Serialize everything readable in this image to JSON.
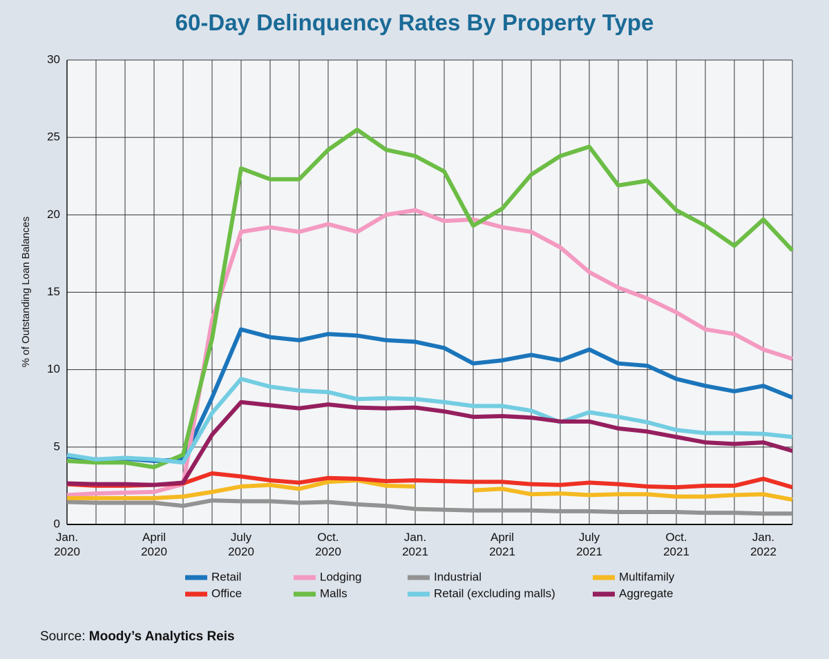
{
  "chart_data": {
    "type": "line",
    "title": "60-Day Delinquency Rates By Property Type",
    "y_label": "% of Outstanding Loan Balances",
    "source_label": "Source:",
    "source": "Moody’s Analytics Reis",
    "categories": [
      "Jan. 2020",
      null,
      null,
      "April 2020",
      null,
      null,
      "July 2020",
      null,
      null,
      "Oct. 2020",
      null,
      null,
      "Jan. 2021",
      null,
      null,
      "April 2021",
      null,
      null,
      "July 2021",
      null,
      null,
      "Oct. 2021",
      null,
      null,
      "Jan. 2022",
      null
    ],
    "ylim": [
      0,
      30
    ],
    "yticks": [
      0,
      5,
      10,
      15,
      20,
      25,
      30
    ],
    "grid": true,
    "series": [
      {
        "name": "Retail",
        "color": "#1b75bb",
        "values": [
          4.4,
          4.2,
          4.25,
          4.1,
          4.2,
          8.2,
          12.6,
          12.1,
          11.9,
          12.3,
          12.2,
          11.9,
          11.8,
          11.4,
          10.4,
          10.6,
          10.95,
          10.6,
          11.3,
          10.4,
          10.25,
          9.4,
          8.95,
          8.6,
          8.95,
          8.2
        ]
      },
      {
        "name": "Lodging",
        "color": "#f49ac1",
        "values": [
          1.9,
          2.0,
          2.05,
          2.1,
          2.6,
          13.2,
          18.9,
          19.2,
          18.9,
          19.4,
          18.9,
          20.0,
          20.3,
          19.6,
          19.7,
          19.2,
          18.9,
          17.9,
          16.3,
          15.3,
          14.6,
          13.7,
          12.6,
          12.3,
          11.3,
          10.7
        ]
      },
      {
        "name": "Industrial",
        "color": "#939393",
        "values": [
          1.45,
          1.4,
          1.4,
          1.4,
          1.2,
          1.55,
          1.5,
          1.5,
          1.4,
          1.45,
          1.3,
          1.2,
          1.0,
          0.95,
          0.9,
          0.9,
          0.9,
          0.85,
          0.85,
          0.8,
          0.8,
          0.8,
          0.75,
          0.75,
          0.7,
          0.7
        ]
      },
      {
        "name": "Multifamily",
        "color": "#f5b921",
        "values": [
          1.7,
          1.7,
          1.7,
          1.7,
          1.8,
          2.1,
          2.45,
          2.55,
          2.3,
          2.75,
          2.85,
          2.5,
          2.45,
          null,
          2.2,
          2.3,
          1.95,
          2.0,
          1.9,
          1.95,
          1.95,
          1.8,
          1.8,
          1.9,
          1.95,
          1.6
        ]
      },
      {
        "name": "Office",
        "color": "#ee3124",
        "values": [
          2.6,
          2.5,
          2.5,
          2.55,
          2.65,
          3.3,
          3.1,
          2.85,
          2.7,
          3.0,
          2.95,
          2.8,
          2.85,
          2.8,
          2.75,
          2.75,
          2.6,
          2.55,
          2.7,
          2.6,
          2.45,
          2.4,
          2.5,
          2.5,
          2.95,
          2.4
        ]
      },
      {
        "name": "Malls",
        "color": "#6cbd45",
        "values": [
          4.1,
          4.0,
          4.0,
          3.7,
          4.5,
          12.0,
          23.0,
          22.3,
          22.3,
          24.2,
          25.5,
          24.2,
          23.8,
          22.8,
          19.3,
          20.4,
          22.6,
          23.8,
          24.4,
          21.9,
          22.2,
          20.3,
          19.3,
          18.0,
          19.7,
          17.7
        ]
      },
      {
        "name": "Retail (excluding malls)",
        "color": "#73cde2",
        "values": [
          4.5,
          4.2,
          4.3,
          4.2,
          4.0,
          7.2,
          9.4,
          8.9,
          8.65,
          8.55,
          8.1,
          8.15,
          8.1,
          7.9,
          7.65,
          7.65,
          7.35,
          6.6,
          7.25,
          6.95,
          6.6,
          6.1,
          5.9,
          5.9,
          5.85,
          5.65
        ]
      },
      {
        "name": "Aggregate",
        "color": "#951f5e",
        "values": [
          2.65,
          2.6,
          2.6,
          2.55,
          2.7,
          5.8,
          7.9,
          7.7,
          7.5,
          7.75,
          7.55,
          7.5,
          7.55,
          7.3,
          6.95,
          7.0,
          6.9,
          6.65,
          6.65,
          6.2,
          6.0,
          5.65,
          5.3,
          5.2,
          5.3,
          4.75
        ]
      }
    ]
  }
}
